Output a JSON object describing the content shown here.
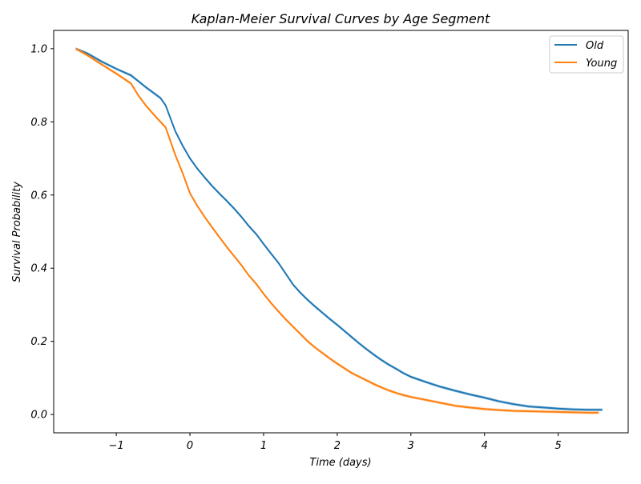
{
  "chart_data": {
    "type": "line",
    "title": "Kaplan-Meier Survival Curves by Age Segment",
    "xlabel": "Time (days)",
    "ylabel": "Survival Probability",
    "xlim": [
      -1.85,
      5.95
    ],
    "ylim": [
      -0.05,
      1.05
    ],
    "x_ticks": [
      -1,
      0,
      1,
      2,
      3,
      4,
      5
    ],
    "x_tick_labels": [
      "−1",
      "0",
      "1",
      "2",
      "3",
      "4",
      "5"
    ],
    "y_ticks": [
      0.0,
      0.2,
      0.4,
      0.6,
      0.8,
      1.0
    ],
    "y_tick_labels": [
      "0.0",
      "0.2",
      "0.4",
      "0.6",
      "0.8",
      "1.0"
    ],
    "grid": false,
    "legend_position": "top-right",
    "series": [
      {
        "name": "Old",
        "color": "#1f77b4",
        "x": [
          -1.55,
          -1.4,
          -1.2,
          -1.0,
          -0.8,
          -0.6,
          -0.4,
          -0.33,
          -0.2,
          -0.1,
          0.0,
          0.1,
          0.2,
          0.3,
          0.4,
          0.5,
          0.6,
          0.7,
          0.8,
          0.9,
          1.0,
          1.1,
          1.2,
          1.3,
          1.4,
          1.5,
          1.6,
          1.7,
          1.8,
          1.9,
          2.0,
          2.1,
          2.2,
          2.3,
          2.4,
          2.5,
          2.6,
          2.7,
          2.8,
          2.9,
          3.0,
          3.2,
          3.4,
          3.6,
          3.8,
          4.0,
          4.2,
          4.4,
          4.6,
          4.8,
          5.0,
          5.2,
          5.4,
          5.6
        ],
        "y": [
          1.0,
          0.988,
          0.965,
          0.945,
          0.927,
          0.895,
          0.865,
          0.845,
          0.775,
          0.735,
          0.7,
          0.672,
          0.648,
          0.625,
          0.604,
          0.584,
          0.563,
          0.54,
          0.515,
          0.493,
          0.466,
          0.44,
          0.415,
          0.385,
          0.355,
          0.333,
          0.313,
          0.295,
          0.278,
          0.261,
          0.245,
          0.228,
          0.211,
          0.194,
          0.178,
          0.163,
          0.149,
          0.136,
          0.125,
          0.113,
          0.103,
          0.089,
          0.076,
          0.065,
          0.055,
          0.046,
          0.036,
          0.028,
          0.022,
          0.019,
          0.016,
          0.014,
          0.013,
          0.013
        ]
      },
      {
        "name": "Young",
        "color": "#ff7f0e",
        "x": [
          -1.55,
          -1.4,
          -1.2,
          -1.0,
          -0.8,
          -0.7,
          -0.6,
          -0.5,
          -0.4,
          -0.33,
          -0.2,
          -0.1,
          0.0,
          0.1,
          0.2,
          0.3,
          0.4,
          0.5,
          0.6,
          0.7,
          0.8,
          0.9,
          1.0,
          1.1,
          1.2,
          1.3,
          1.4,
          1.5,
          1.6,
          1.7,
          1.8,
          1.9,
          2.0,
          2.1,
          2.2,
          2.3,
          2.4,
          2.5,
          2.6,
          2.7,
          2.8,
          2.9,
          3.0,
          3.2,
          3.4,
          3.6,
          3.8,
          4.0,
          4.2,
          4.4,
          4.6,
          4.8,
          5.0,
          5.2,
          5.4,
          5.55
        ],
        "y": [
          1.0,
          0.983,
          0.957,
          0.932,
          0.905,
          0.872,
          0.845,
          0.822,
          0.8,
          0.785,
          0.71,
          0.66,
          0.605,
          0.57,
          0.54,
          0.512,
          0.485,
          0.458,
          0.433,
          0.408,
          0.38,
          0.357,
          0.33,
          0.305,
          0.282,
          0.26,
          0.24,
          0.22,
          0.2,
          0.183,
          0.168,
          0.153,
          0.139,
          0.126,
          0.113,
          0.103,
          0.093,
          0.083,
          0.074,
          0.066,
          0.059,
          0.053,
          0.048,
          0.04,
          0.032,
          0.024,
          0.019,
          0.015,
          0.012,
          0.01,
          0.009,
          0.008,
          0.007,
          0.006,
          0.005,
          0.005
        ]
      }
    ]
  }
}
